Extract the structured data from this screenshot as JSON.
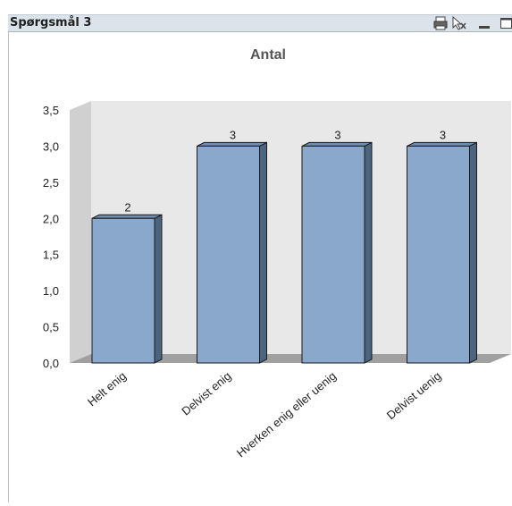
{
  "window": {
    "caption": "Spørgsmål 3",
    "icons": [
      "print-icon",
      "clear-selection-icon",
      "minimize-icon",
      "maximize-icon"
    ]
  },
  "chart_data": {
    "type": "bar",
    "title": "Antal",
    "categories": [
      "Helt enig",
      "Delvist enig",
      "Hverken enig eller uenig",
      "Delvist uenig"
    ],
    "values": [
      2,
      3,
      3,
      3
    ],
    "data_labels": [
      "2",
      "3",
      "3",
      "3"
    ],
    "ylim": [
      0,
      3.5
    ],
    "yticks": [
      "0,0",
      "0,5",
      "1,0",
      "1,5",
      "2,0",
      "2,5",
      "3,0",
      "3,5"
    ],
    "grid": false,
    "style": "3d",
    "colors": {
      "bar_front": "#8aa8cb",
      "bar_side": "#4d6480",
      "bar_top": "#6f8db0",
      "wall": "#e8e8e8",
      "floor": "#a0a0a0"
    }
  }
}
